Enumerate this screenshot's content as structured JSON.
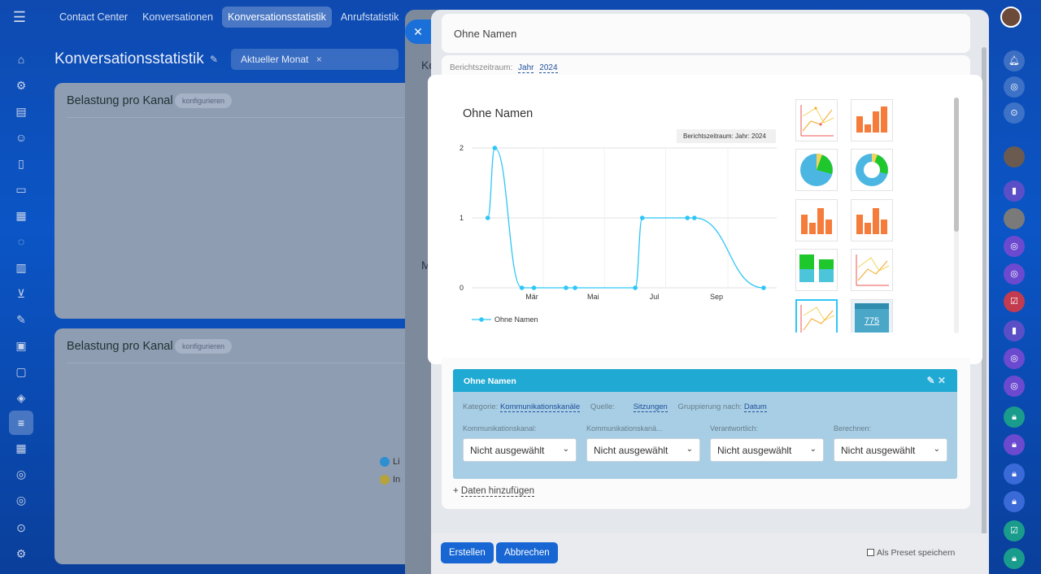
{
  "topnav": {
    "tabs": [
      "Contact Center",
      "Konversationen",
      "Konversationsstatistik",
      "Anrufstatistik"
    ],
    "active_index": 2
  },
  "page": {
    "title": "Konversationsstatistik",
    "filter_chip": "Aktueller Monat",
    "filter_chip_close": "×"
  },
  "widgets": [
    {
      "title": "Belastung pro Kanal",
      "configure": "konfigurieren"
    },
    {
      "title": "Belastung pro Kanal",
      "configure": "konfigurieren"
    }
  ],
  "background_legend": [
    {
      "text": "Li",
      "color": "#2e8fd0"
    },
    {
      "text": "In",
      "color": "#b6a33a"
    }
  ],
  "mid_slider": {
    "close": "✕",
    "letter1": "Ko",
    "letter2": "M"
  },
  "report": {
    "name": "Ohne Namen",
    "period_label": "Berichtszeitraum:",
    "period_type": "Jahr",
    "period_year": "2024"
  },
  "preview": {
    "title": "Ohne Namen",
    "badge": "Berichtszeitraum: Jahr: 2024"
  },
  "chart_data": {
    "type": "line",
    "title": "Ohne Namen",
    "subtitle": "Berichtszeitraum: Jahr: 2024",
    "x_ticks": [
      "Mär",
      "Mai",
      "Jul",
      "Sep"
    ],
    "y_ticks": [
      "0",
      "1",
      "2"
    ],
    "ylim": [
      0,
      2
    ],
    "series": [
      {
        "name": "Ohne Namen",
        "color": "#2fc6f6",
        "x": [
          "2024-01-17",
          "2024-01-24",
          "2024-02-20",
          "2024-03-03",
          "2024-04-04",
          "2024-04-13",
          "2024-06-12",
          "2024-06-19",
          "2024-08-03",
          "2024-08-10",
          "2024-10-18"
        ],
        "values": [
          1,
          2,
          0,
          0,
          0,
          0,
          0,
          1,
          1,
          1,
          0
        ]
      }
    ],
    "grid": true,
    "legend_position": "bottom-left"
  },
  "chart_types": [
    "line",
    "bar",
    "pie",
    "donut",
    "bar",
    "bar",
    "stacked-bar",
    "line",
    "line",
    "number"
  ],
  "number_widget_value": "775",
  "data_card": {
    "title": "Ohne Namen",
    "category_label": "Kategorie:",
    "category_value": "Kommunikationskanäle",
    "source_label": "Quelle:",
    "source_value": "Sitzungen",
    "group_label": "Gruppierung nach:",
    "group_value": "Datum",
    "filters": [
      {
        "label": "Kommunikationskanal:",
        "value": "Nicht ausgewählt"
      },
      {
        "label": "Kommunikationskanä...",
        "value": "Nicht ausgewählt"
      },
      {
        "label": "Verantwortlich:",
        "value": "Nicht ausgewählt"
      },
      {
        "label": "Berechnen:",
        "value": "Nicht ausgewählt"
      }
    ]
  },
  "add_data": "Daten hinzufügen",
  "add_data_plus": "+",
  "footer": {
    "create": "Erstellen",
    "cancel": "Abbrechen",
    "save_preset": "Als Preset speichern"
  },
  "colors": {
    "primary_button": "#1766d3",
    "line_series": "#2fc6f6",
    "data_card_header": "#1fa9d3"
  }
}
